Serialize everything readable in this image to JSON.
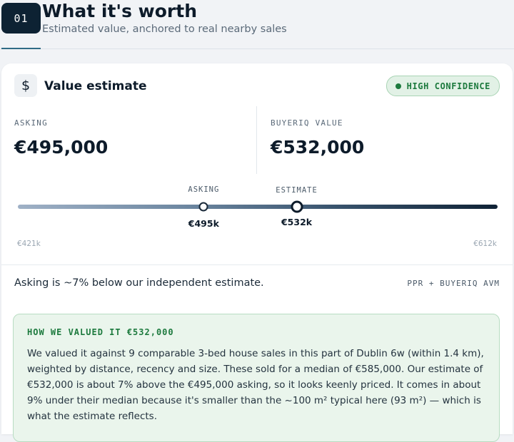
{
  "header": {
    "step": "01",
    "title": "What it's worth",
    "subtitle": "Estimated value, anchored to real nearby sales"
  },
  "card": {
    "icon": "dollar-icon",
    "icon_glyph": "$",
    "title": "Value estimate",
    "confidence": "HIGH CONFIDENCE",
    "asking_label": "ASKING",
    "asking_value": "€495,000",
    "estimate_label": "BUYERIQ VALUE",
    "estimate_value": "€532,000"
  },
  "slider": {
    "range_min": 421,
    "range_max": 612,
    "min_label": "€421k",
    "max_label": "€612k",
    "asking": {
      "label": "ASKING",
      "value": 495,
      "value_label": "€495k"
    },
    "estimate": {
      "label": "ESTIMATE",
      "value": 532,
      "value_label": "€532k"
    }
  },
  "comparison": {
    "text": "Asking is ~7% below our independent estimate.",
    "source": "PPR + BUYERIQ AVM"
  },
  "explanation": {
    "heading": "HOW WE VALUED IT €532,000",
    "body": "We valued it against 9 comparable 3-bed house sales in this part of Dublin 6w (within 1.4 km), weighted by distance, recency and size. These sold for a median of €585,000. Our estimate of €532,000 is about 7% above the €495,000 asking, so it looks keenly priced. It comes in about 9% under their median because it's smaller than the ~100 m² typical here (93 m²) — which is what the estimate reflects."
  },
  "colors": {
    "accent_dark": "#0d2233",
    "confidence_green": "#1d7a3e",
    "explain_bg": "#eaf5ec"
  }
}
